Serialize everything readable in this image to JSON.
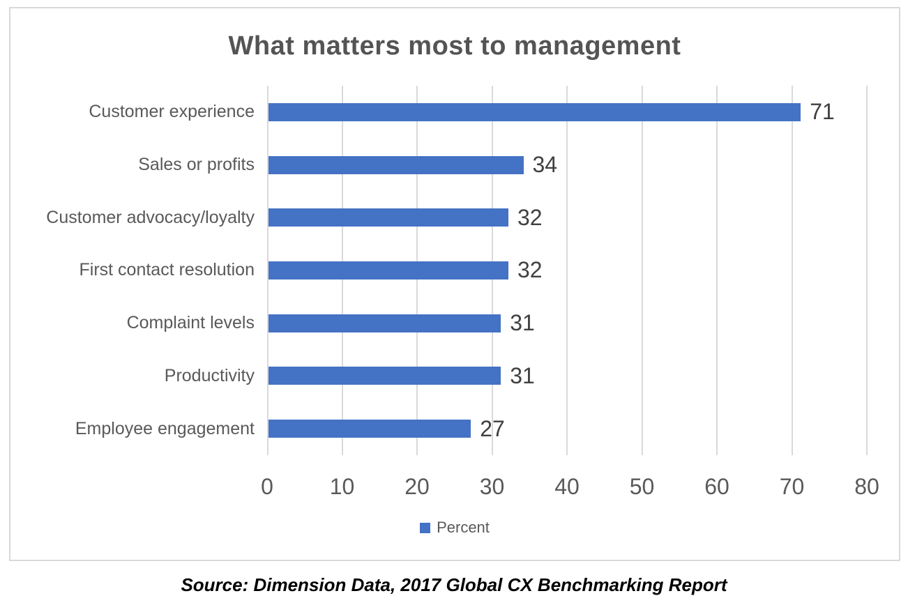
{
  "chart_data": {
    "type": "bar",
    "orientation": "horizontal",
    "title": "What matters most to management",
    "categories": [
      "Customer experience",
      "Sales or profits",
      "Customer advocacy/loyalty",
      "First contact resolution",
      "Complaint levels",
      "Productivity",
      "Employee engagement"
    ],
    "values": [
      71,
      34,
      32,
      32,
      31,
      31,
      27
    ],
    "series_name": "Percent",
    "xlabel": "",
    "ylabel": "",
    "xlim": [
      0,
      80
    ],
    "x_ticks": [
      0,
      10,
      20,
      30,
      40,
      50,
      60,
      70,
      80
    ],
    "grid": "vertical gridlines on",
    "legend_position": "bottom",
    "data_labels": true
  },
  "source_note": "Source: Dimension Data, 2017 Global CX Benchmarking Report",
  "colors": {
    "bar": "#4472c4",
    "gridline": "#d9d9d9",
    "chart_border": "#d9d9d9",
    "title_text": "#545454",
    "axis_text": "#595959",
    "value_label_text": "#404040",
    "source_text": "#000000",
    "background": "#ffffff"
  }
}
